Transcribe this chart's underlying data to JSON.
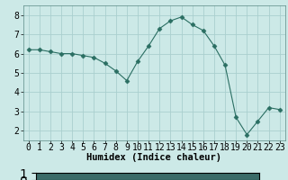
{
  "x": [
    0,
    1,
    2,
    3,
    4,
    5,
    6,
    7,
    8,
    9,
    10,
    11,
    12,
    13,
    14,
    15,
    16,
    17,
    18,
    19,
    20,
    21,
    22,
    23
  ],
  "y": [
    6.2,
    6.2,
    6.1,
    6.0,
    6.0,
    5.9,
    5.8,
    5.5,
    5.1,
    4.6,
    5.6,
    6.4,
    7.3,
    7.7,
    7.9,
    7.5,
    7.2,
    6.4,
    5.4,
    2.7,
    1.8,
    2.5,
    3.2,
    3.1
  ],
  "line_color": "#2a6e62",
  "marker": "D",
  "marker_size": 2.5,
  "bg_color": "#cce9e7",
  "grid_color": "#aacfce",
  "axis_bg": "#cce9e7",
  "bottom_bar_color": "#3a6b68",
  "xlabel": "Humidex (Indice chaleur)",
  "xlabel_fontsize": 7.5,
  "tick_fontsize": 7,
  "ylim": [
    1.5,
    8.5
  ],
  "xlim": [
    -0.5,
    23.5
  ],
  "yticks": [
    2,
    3,
    4,
    5,
    6,
    7,
    8
  ],
  "xticks": [
    0,
    1,
    2,
    3,
    4,
    5,
    6,
    7,
    8,
    9,
    10,
    11,
    12,
    13,
    14,
    15,
    16,
    17,
    18,
    19,
    20,
    21,
    22,
    23
  ]
}
